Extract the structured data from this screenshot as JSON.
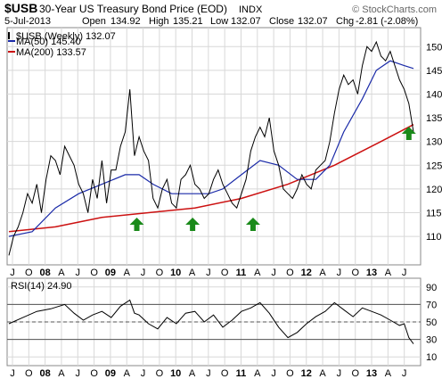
{
  "header": {
    "ticker": "$USB",
    "description": "30-Year US Treasury Bond Price (EOD)",
    "exchange": "INDX",
    "watermark": "© StockCharts.com",
    "date": "5-Jul-2013",
    "open_label": "Open",
    "open": "134.92",
    "high_label": "High",
    "high": "135.21",
    "low_label": "Low",
    "low": "132.07",
    "close_label": "Close",
    "close": "132.07",
    "chg_label": "Chg",
    "chg": "-2.81 (-2.08%)"
  },
  "legend": [
    {
      "label": "$USB (Weekly) 132.07",
      "color": "#000000"
    },
    {
      "label": "MA(50) 145.40",
      "color": "#1a2aa8"
    },
    {
      "label": "MA(200) 133.57",
      "color": "#cc1111"
    }
  ],
  "colors": {
    "price": "#000000",
    "ma50": "#1a2aa8",
    "ma200": "#cc1111",
    "arrow": "#1a8a1a",
    "grid": "#d8d8d8"
  },
  "arrow_icon": "green-up-arrow-icon",
  "rsi_label": "RSI(14) 24.90",
  "chart_data": [
    {
      "type": "line",
      "name": "price-panel",
      "x_labels": [
        "J",
        "O",
        "08",
        "A",
        "J",
        "O",
        "09",
        "A",
        "J",
        "O",
        "10",
        "A",
        "J",
        "O",
        "11",
        "A",
        "J",
        "O",
        "12",
        "A",
        "J",
        "O",
        "13",
        "A",
        "J"
      ],
      "yticks": [
        110,
        115,
        120,
        125,
        130,
        135,
        140,
        145,
        150
      ],
      "ylim": [
        104,
        154
      ],
      "price_points": [
        [
          0,
          106
        ],
        [
          1,
          110
        ],
        [
          2,
          112
        ],
        [
          3,
          115
        ],
        [
          4,
          119
        ],
        [
          5,
          117
        ],
        [
          6,
          121
        ],
        [
          7,
          115
        ],
        [
          8,
          122
        ],
        [
          9,
          127
        ],
        [
          10,
          126
        ],
        [
          11,
          123
        ],
        [
          12,
          129
        ],
        [
          13,
          127
        ],
        [
          14,
          125
        ],
        [
          15,
          121
        ],
        [
          16,
          119
        ],
        [
          17,
          115
        ],
        [
          18,
          122
        ],
        [
          19,
          118
        ],
        [
          20,
          126
        ],
        [
          21,
          117
        ],
        [
          22,
          124
        ],
        [
          23,
          124
        ],
        [
          24,
          129
        ],
        [
          25,
          132
        ],
        [
          26,
          141
        ],
        [
          27,
          127
        ],
        [
          28,
          131
        ],
        [
          29,
          128
        ],
        [
          30,
          126
        ],
        [
          31,
          118
        ],
        [
          32,
          116
        ],
        [
          33,
          120
        ],
        [
          34,
          122
        ],
        [
          35,
          117
        ],
        [
          36,
          116
        ],
        [
          37,
          122
        ],
        [
          38,
          123
        ],
        [
          39,
          125
        ],
        [
          40,
          121
        ],
        [
          41,
          120
        ],
        [
          42,
          118
        ],
        [
          43,
          119
        ],
        [
          44,
          122
        ],
        [
          45,
          124
        ],
        [
          46,
          121
        ],
        [
          47,
          119
        ],
        [
          48,
          117
        ],
        [
          49,
          116
        ],
        [
          50,
          119
        ],
        [
          51,
          122
        ],
        [
          52,
          128
        ],
        [
          53,
          131
        ],
        [
          54,
          133
        ],
        [
          55,
          131
        ],
        [
          56,
          135
        ],
        [
          57,
          128
        ],
        [
          58,
          125
        ],
        [
          59,
          120
        ],
        [
          60,
          119
        ],
        [
          61,
          118
        ],
        [
          62,
          120
        ],
        [
          63,
          123
        ],
        [
          64,
          121
        ],
        [
          65,
          120
        ],
        [
          66,
          124
        ],
        [
          67,
          125
        ],
        [
          68,
          126
        ],
        [
          69,
          130
        ],
        [
          70,
          136
        ],
        [
          71,
          141
        ],
        [
          72,
          144
        ],
        [
          73,
          142
        ],
        [
          74,
          143
        ],
        [
          75,
          140
        ],
        [
          76,
          146
        ],
        [
          77,
          150
        ],
        [
          78,
          149
        ],
        [
          79,
          151
        ],
        [
          80,
          148
        ],
        [
          81,
          147
        ],
        [
          82,
          149
        ],
        [
          83,
          146
        ],
        [
          84,
          143
        ],
        [
          85,
          141
        ],
        [
          86,
          138
        ],
        [
          87,
          132
        ]
      ],
      "ma50_points": [
        [
          0,
          110
        ],
        [
          5,
          111
        ],
        [
          10,
          116
        ],
        [
          15,
          119
        ],
        [
          20,
          121
        ],
        [
          25,
          123
        ],
        [
          28,
          123
        ],
        [
          31,
          121
        ],
        [
          35,
          119
        ],
        [
          39,
          119
        ],
        [
          43,
          119
        ],
        [
          46,
          120
        ],
        [
          50,
          123
        ],
        [
          54,
          126
        ],
        [
          58,
          125
        ],
        [
          62,
          122
        ],
        [
          66,
          122
        ],
        [
          69,
          125
        ],
        [
          72,
          132
        ],
        [
          76,
          139
        ],
        [
          79,
          145
        ],
        [
          82,
          147
        ],
        [
          85,
          146
        ],
        [
          87,
          145.4
        ]
      ],
      "ma200_points": [
        [
          0,
          111
        ],
        [
          10,
          112
        ],
        [
          20,
          114
        ],
        [
          30,
          115
        ],
        [
          40,
          116
        ],
        [
          50,
          118
        ],
        [
          60,
          121
        ],
        [
          70,
          125
        ],
        [
          80,
          130
        ],
        [
          87,
          133.57
        ]
      ],
      "arrows_x": [
        27.5,
        39.5,
        52.5,
        86
      ]
    },
    {
      "type": "line",
      "name": "rsi-panel",
      "x_labels": [
        "J",
        "O",
        "08",
        "A",
        "J",
        "O",
        "09",
        "A",
        "J",
        "O",
        "10",
        "A",
        "J",
        "O",
        "11",
        "A",
        "J",
        "O",
        "12",
        "A",
        "J",
        "O",
        "13",
        "A",
        "J"
      ],
      "yticks": [
        10,
        30,
        50,
        70,
        90
      ],
      "ylim": [
        0,
        100
      ],
      "reference_lines": [
        30,
        50,
        70
      ],
      "rsi_points": [
        [
          0,
          48
        ],
        [
          3,
          55
        ],
        [
          6,
          62
        ],
        [
          9,
          65
        ],
        [
          12,
          70
        ],
        [
          14,
          60
        ],
        [
          16,
          52
        ],
        [
          18,
          58
        ],
        [
          20,
          62
        ],
        [
          22,
          55
        ],
        [
          24,
          68
        ],
        [
          26,
          75
        ],
        [
          27,
          60
        ],
        [
          28,
          58
        ],
        [
          30,
          48
        ],
        [
          32,
          42
        ],
        [
          34,
          55
        ],
        [
          36,
          48
        ],
        [
          38,
          60
        ],
        [
          40,
          62
        ],
        [
          42,
          50
        ],
        [
          44,
          58
        ],
        [
          46,
          44
        ],
        [
          48,
          52
        ],
        [
          50,
          62
        ],
        [
          52,
          66
        ],
        [
          54,
          72
        ],
        [
          56,
          60
        ],
        [
          58,
          44
        ],
        [
          60,
          32
        ],
        [
          62,
          38
        ],
        [
          64,
          48
        ],
        [
          66,
          56
        ],
        [
          68,
          62
        ],
        [
          70,
          72
        ],
        [
          72,
          64
        ],
        [
          74,
          56
        ],
        [
          76,
          66
        ],
        [
          78,
          62
        ],
        [
          80,
          58
        ],
        [
          82,
          52
        ],
        [
          84,
          46
        ],
        [
          85,
          48
        ],
        [
          86,
          32
        ],
        [
          87,
          24.9
        ]
      ]
    }
  ]
}
